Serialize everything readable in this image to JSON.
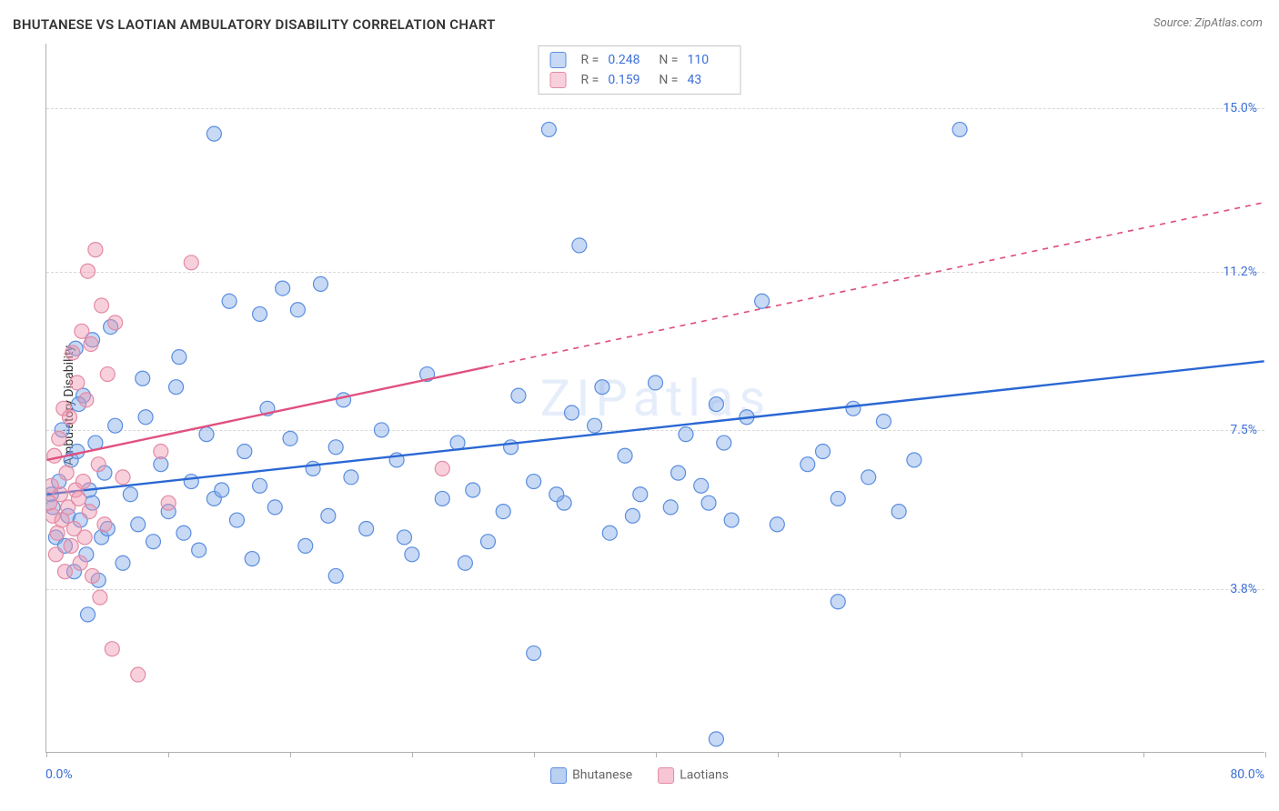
{
  "title": "BHUTANESE VS LAOTIAN AMBULATORY DISABILITY CORRELATION CHART",
  "source": "Source: ZipAtlas.com",
  "y_axis_label": "Ambulatory Disability",
  "watermark": "ZIPatlas",
  "chart": {
    "type": "scatter",
    "background_color": "#ffffff",
    "grid_color": "#d8d8d8",
    "axis_color": "#b0b0b0",
    "label_color": "#3b6fd8",
    "xlim": [
      0,
      80
    ],
    "ylim": [
      0,
      16.5
    ],
    "x_min_label": "0.0%",
    "x_max_label": "80.0%",
    "y_ticks": [
      {
        "value": 3.8,
        "label": "3.8%"
      },
      {
        "value": 7.5,
        "label": "7.5%"
      },
      {
        "value": 11.2,
        "label": "11.2%"
      },
      {
        "value": 15.0,
        "label": "15.0%"
      }
    ],
    "x_tick_positions": [
      0,
      8,
      16,
      24,
      32,
      40,
      48,
      56,
      64,
      72,
      80
    ],
    "marker_radius": 8,
    "marker_stroke_width": 1.2,
    "trend_line_width": 2.4,
    "series": [
      {
        "name": "Bhutanese",
        "fill_color": "rgba(130,170,230,0.45)",
        "stroke_color": "#5a8de0",
        "trend_color": "#2a67d4",
        "r_value": "0.248",
        "n_value": "110",
        "trend": {
          "x1": 0,
          "y1": 6.0,
          "x2": 80,
          "y2": 9.1,
          "dash_from_x": 80
        },
        "points": [
          [
            0.3,
            6.0
          ],
          [
            0.4,
            5.7
          ],
          [
            0.6,
            5.0
          ],
          [
            0.8,
            6.3
          ],
          [
            1.0,
            7.5
          ],
          [
            1.2,
            4.8
          ],
          [
            1.4,
            5.5
          ],
          [
            1.6,
            6.8
          ],
          [
            1.8,
            4.2
          ],
          [
            2.0,
            7.0
          ],
          [
            2.2,
            5.4
          ],
          [
            2.4,
            8.3
          ],
          [
            2.6,
            4.6
          ],
          [
            2.8,
            6.1
          ],
          [
            3.0,
            5.8
          ],
          [
            3.2,
            7.2
          ],
          [
            3.4,
            4.0
          ],
          [
            3.6,
            5.0
          ],
          [
            3.8,
            6.5
          ],
          [
            4.0,
            5.2
          ],
          [
            4.5,
            7.6
          ],
          [
            5.0,
            4.4
          ],
          [
            5.5,
            6.0
          ],
          [
            6.0,
            5.3
          ],
          [
            6.5,
            7.8
          ],
          [
            7.0,
            4.9
          ],
          [
            7.5,
            6.7
          ],
          [
            8.0,
            5.6
          ],
          [
            8.5,
            8.5
          ],
          [
            9.0,
            5.1
          ],
          [
            9.5,
            6.3
          ],
          [
            10.0,
            4.7
          ],
          [
            10.5,
            7.4
          ],
          [
            11.0,
            5.9
          ],
          [
            11.5,
            6.1
          ],
          [
            12.0,
            10.5
          ],
          [
            12.5,
            5.4
          ],
          [
            13.0,
            7.0
          ],
          [
            13.5,
            4.5
          ],
          [
            14.0,
            6.2
          ],
          [
            14.5,
            8.0
          ],
          [
            15.0,
            5.7
          ],
          [
            15.5,
            10.8
          ],
          [
            16.0,
            7.3
          ],
          [
            16.5,
            10.3
          ],
          [
            17.0,
            4.8
          ],
          [
            17.5,
            6.6
          ],
          [
            18.0,
            10.9
          ],
          [
            18.5,
            5.5
          ],
          [
            19.0,
            7.1
          ],
          [
            19.5,
            8.2
          ],
          [
            20.0,
            6.4
          ],
          [
            21.0,
            5.2
          ],
          [
            22.0,
            7.5
          ],
          [
            23.0,
            6.8
          ],
          [
            24.0,
            4.6
          ],
          [
            25.0,
            8.8
          ],
          [
            26.0,
            5.9
          ],
          [
            27.0,
            7.2
          ],
          [
            28.0,
            6.1
          ],
          [
            29.0,
            4.9
          ],
          [
            30.0,
            5.6
          ],
          [
            31.0,
            8.3
          ],
          [
            32.0,
            6.3
          ],
          [
            33.0,
            14.5
          ],
          [
            34.0,
            5.8
          ],
          [
            35.0,
            11.8
          ],
          [
            36.0,
            7.6
          ],
          [
            37.0,
            5.1
          ],
          [
            38.0,
            6.9
          ],
          [
            39.0,
            6.0
          ],
          [
            40.0,
            8.6
          ],
          [
            41.0,
            5.7
          ],
          [
            42.0,
            7.4
          ],
          [
            43.0,
            6.2
          ],
          [
            44.0,
            8.1
          ],
          [
            45.0,
            5.4
          ],
          [
            46.0,
            7.8
          ],
          [
            47.0,
            10.5
          ],
          [
            48.0,
            5.3
          ],
          [
            32.0,
            2.3
          ],
          [
            11.0,
            14.4
          ],
          [
            3.0,
            9.6
          ],
          [
            4.2,
            9.9
          ],
          [
            6.3,
            8.7
          ],
          [
            8.7,
            9.2
          ],
          [
            2.1,
            8.1
          ],
          [
            1.9,
            9.4
          ],
          [
            50.0,
            6.7
          ],
          [
            51.0,
            7.0
          ],
          [
            52.0,
            5.9
          ],
          [
            53.0,
            8.0
          ],
          [
            54.0,
            6.4
          ],
          [
            55.0,
            7.7
          ],
          [
            56.0,
            5.6
          ],
          [
            57.0,
            6.8
          ],
          [
            44.0,
            0.3
          ],
          [
            52.0,
            3.5
          ],
          [
            60.0,
            14.5
          ],
          [
            2.7,
            3.2
          ],
          [
            14.0,
            10.2
          ],
          [
            19.0,
            4.1
          ],
          [
            23.5,
            5.0
          ],
          [
            27.5,
            4.4
          ],
          [
            34.5,
            7.9
          ],
          [
            38.5,
            5.5
          ],
          [
            41.5,
            6.5
          ],
          [
            44.5,
            7.2
          ],
          [
            33.5,
            6.0
          ],
          [
            36.5,
            8.5
          ],
          [
            43.5,
            5.8
          ],
          [
            30.5,
            7.1
          ]
        ]
      },
      {
        "name": "Laotians",
        "fill_color": "rgba(240,150,175,0.45)",
        "stroke_color": "#e38aa5",
        "trend_color": "#e05080",
        "r_value": "0.159",
        "n_value": "43",
        "trend": {
          "x1": 0,
          "y1": 6.8,
          "x2": 80,
          "y2": 12.8,
          "dash_from_x": 29
        },
        "points": [
          [
            0.2,
            5.8
          ],
          [
            0.3,
            6.2
          ],
          [
            0.4,
            5.5
          ],
          [
            0.5,
            6.9
          ],
          [
            0.6,
            4.6
          ],
          [
            0.7,
            5.1
          ],
          [
            0.8,
            7.3
          ],
          [
            0.9,
            6.0
          ],
          [
            1.0,
            5.4
          ],
          [
            1.1,
            8.0
          ],
          [
            1.2,
            4.2
          ],
          [
            1.3,
            6.5
          ],
          [
            1.4,
            5.7
          ],
          [
            1.5,
            7.8
          ],
          [
            1.6,
            4.8
          ],
          [
            1.7,
            9.3
          ],
          [
            1.8,
            5.2
          ],
          [
            1.9,
            6.1
          ],
          [
            2.0,
            8.6
          ],
          [
            2.1,
            5.9
          ],
          [
            2.2,
            4.4
          ],
          [
            2.3,
            9.8
          ],
          [
            2.4,
            6.3
          ],
          [
            2.5,
            5.0
          ],
          [
            2.6,
            8.2
          ],
          [
            2.7,
            11.2
          ],
          [
            2.8,
            5.6
          ],
          [
            2.9,
            9.5
          ],
          [
            3.0,
            4.1
          ],
          [
            3.2,
            11.7
          ],
          [
            3.4,
            6.7
          ],
          [
            3.6,
            10.4
          ],
          [
            3.8,
            5.3
          ],
          [
            4.0,
            8.8
          ],
          [
            4.5,
            10.0
          ],
          [
            5.0,
            6.4
          ],
          [
            6.0,
            1.8
          ],
          [
            4.3,
            2.4
          ],
          [
            3.5,
            3.6
          ],
          [
            9.5,
            11.4
          ],
          [
            7.5,
            7.0
          ],
          [
            26.0,
            6.6
          ],
          [
            8.0,
            5.8
          ]
        ]
      }
    ]
  },
  "bottom_legend": [
    {
      "label": "Bhutanese",
      "fill": "rgba(130,170,230,0.55)",
      "stroke": "#5a8de0"
    },
    {
      "label": "Laotians",
      "fill": "rgba(240,150,175,0.55)",
      "stroke": "#e38aa5"
    }
  ]
}
